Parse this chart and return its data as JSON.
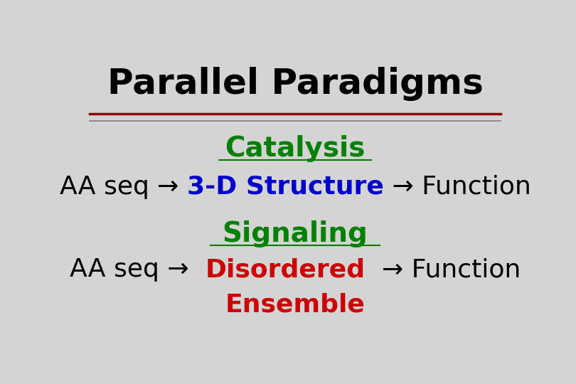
{
  "title": "Parallel Paradigms",
  "title_color": "#000000",
  "title_fontsize": 36,
  "title_fontweight": "bold",
  "background_color": "#d4d4d4",
  "separator_color1": "#8b0000",
  "separator_color2": "#808080",
  "catalysis_label": "Catalysis",
  "catalysis_color": "#008000",
  "catalysis_fontsize": 28,
  "row1_parts": [
    {
      "text": "AA seq ",
      "color": "#000000",
      "bold": false
    },
    {
      "text": "→ ",
      "color": "#000000",
      "bold": false
    },
    {
      "text": "3-D Structure",
      "color": "#0000cc",
      "bold": true
    },
    {
      "text": " → Function",
      "color": "#000000",
      "bold": false
    }
  ],
  "row1_fontsize": 26,
  "signaling_label": "Signaling",
  "signaling_color": "#008000",
  "signaling_fontsize": 28,
  "row2_left": "AA seq →",
  "row2_left_color": "#000000",
  "row2_middle1": "Disordered",
  "row2_middle1_color": "#cc0000",
  "row2_right": "→ Function",
  "row2_right_color": "#000000",
  "row2_middle2": "Ensemble",
  "row2_middle2_color": "#cc0000",
  "row2_fontsize": 26
}
